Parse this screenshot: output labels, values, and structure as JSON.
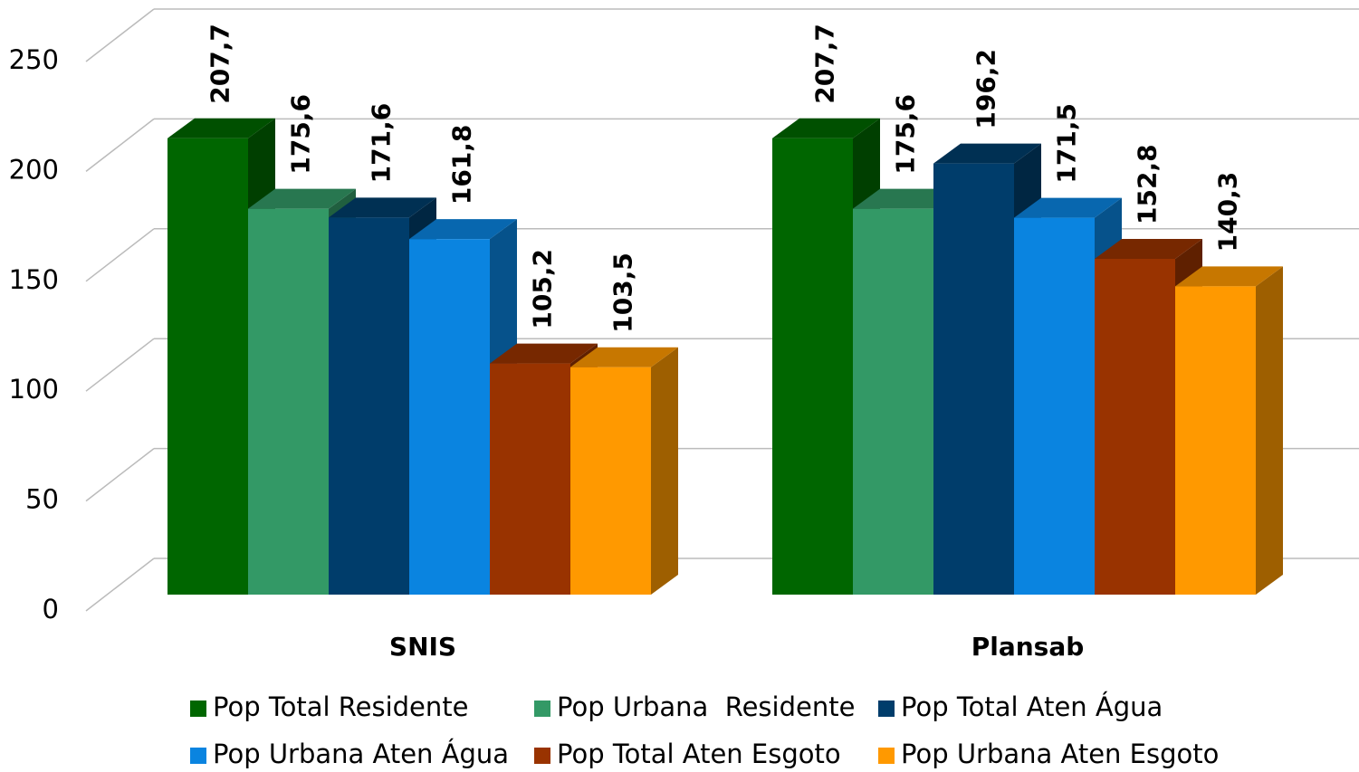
{
  "chart_data": {
    "type": "bar3d",
    "categories": [
      "SNIS",
      "Plansab"
    ],
    "series": [
      {
        "name": "Pop Total Residente",
        "color": "#006600",
        "values": [
          207.7,
          207.7
        ],
        "value_labels": [
          "207,7",
          "207,7"
        ]
      },
      {
        "name": "Pop Urbana  Residente",
        "color": "#339966",
        "values": [
          175.6,
          175.6
        ],
        "value_labels": [
          "175,6",
          "175,6"
        ]
      },
      {
        "name": "Pop Total Aten Água",
        "color": "#003d6b",
        "values": [
          171.6,
          196.2
        ],
        "value_labels": [
          "171,6",
          "196,2"
        ]
      },
      {
        "name": "Pop Urbana Aten Água",
        "color": "#0a84e0",
        "values": [
          161.8,
          171.5
        ],
        "value_labels": [
          "161,8",
          "171,5"
        ]
      },
      {
        "name": "Pop Total Aten Esgoto",
        "color": "#993300",
        "values": [
          105.2,
          152.8
        ],
        "value_labels": [
          "105,2",
          "152,8"
        ]
      },
      {
        "name": "Pop Urbana Aten Esgoto",
        "color": "#ff9900",
        "values": [
          103.5,
          140.3
        ],
        "value_labels": [
          "103,5",
          "140,3"
        ]
      }
    ],
    "ylim": [
      0,
      250
    ],
    "yticks": [
      0,
      50,
      100,
      150,
      200,
      250
    ],
    "grid": true,
    "legend": "bottom"
  }
}
